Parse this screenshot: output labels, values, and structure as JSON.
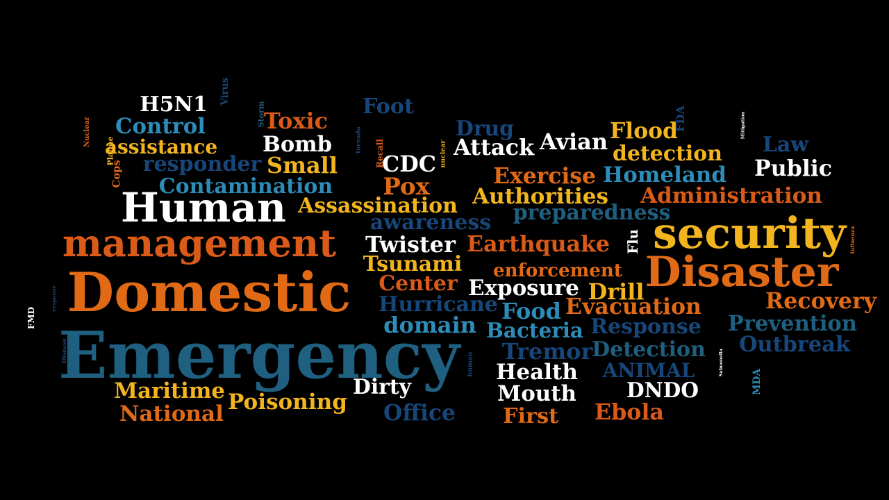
{
  "palette": {
    "white": "#ffffff",
    "orange": "#e06a16",
    "redorange": "#d95a19",
    "yellow": "#f2b51f",
    "skyblue": "#2d8cb8",
    "teal": "#1f5f80",
    "navy": "#17477a",
    "deepnavy": "#123561"
  },
  "words": [
    {
      "text": "Domestic",
      "color": "orange"
    },
    {
      "text": "Emergency",
      "color": "teal"
    },
    {
      "text": "management",
      "color": "redorange"
    },
    {
      "text": "Human",
      "color": "white"
    },
    {
      "text": "security",
      "color": "yellow"
    },
    {
      "text": "Disaster",
      "color": "orange"
    },
    {
      "text": "H5N1",
      "color": "white"
    },
    {
      "text": "Control",
      "color": "skyblue"
    },
    {
      "text": "assistance",
      "color": "yellow"
    },
    {
      "text": "responder",
      "color": "navy"
    },
    {
      "text": "Contamination",
      "color": "skyblue"
    },
    {
      "text": "Assassination",
      "color": "yellow"
    },
    {
      "text": "Toxic",
      "color": "redorange"
    },
    {
      "text": "Bomb",
      "color": "white"
    },
    {
      "text": "Small",
      "color": "yellow"
    },
    {
      "text": "Foot",
      "color": "navy"
    },
    {
      "text": "CDC",
      "color": "white"
    },
    {
      "text": "Pox",
      "color": "orange"
    },
    {
      "text": "Drug",
      "color": "navy"
    },
    {
      "text": "Attack",
      "color": "white"
    },
    {
      "text": "Avian",
      "color": "white"
    },
    {
      "text": "Flood",
      "color": "yellow"
    },
    {
      "text": "detection",
      "color": "yellow"
    },
    {
      "text": "Exercise",
      "color": "orange"
    },
    {
      "text": "Homeland",
      "color": "skyblue"
    },
    {
      "text": "Authorities",
      "color": "yellow"
    },
    {
      "text": "Administration",
      "color": "redorange"
    },
    {
      "text": "Law",
      "color": "navy"
    },
    {
      "text": "Public",
      "color": "white"
    },
    {
      "text": "preparedness",
      "color": "teal"
    },
    {
      "text": "awareness",
      "color": "navy"
    },
    {
      "text": "Twister",
      "color": "white"
    },
    {
      "text": "Earthquake",
      "color": "redorange"
    },
    {
      "text": "Tsunami",
      "color": "yellow"
    },
    {
      "text": "enforcement",
      "color": "orange"
    },
    {
      "text": "Center",
      "color": "redorange"
    },
    {
      "text": "Exposure",
      "color": "white"
    },
    {
      "text": "Drill",
      "color": "yellow"
    },
    {
      "text": "Hurricane",
      "color": "navy"
    },
    {
      "text": "Food",
      "color": "skyblue"
    },
    {
      "text": "Evacuation",
      "color": "orange"
    },
    {
      "text": "Recovery",
      "color": "orange"
    },
    {
      "text": "domain",
      "color": "skyblue"
    },
    {
      "text": "Bacteria",
      "color": "skyblue"
    },
    {
      "text": "Response",
      "color": "navy"
    },
    {
      "text": "Prevention",
      "color": "teal"
    },
    {
      "text": "Outbreak",
      "color": "navy"
    },
    {
      "text": "Tremor",
      "color": "navy"
    },
    {
      "text": "Detection",
      "color": "teal"
    },
    {
      "text": "ANIMAL",
      "color": "navy"
    },
    {
      "text": "Health",
      "color": "white"
    },
    {
      "text": "Mouth",
      "color": "white"
    },
    {
      "text": "First",
      "color": "orange"
    },
    {
      "text": "DNDO",
      "color": "white"
    },
    {
      "text": "Ebola",
      "color": "redorange"
    },
    {
      "text": "Maritime",
      "color": "yellow"
    },
    {
      "text": "National",
      "color": "orange"
    },
    {
      "text": "Poisoning",
      "color": "yellow"
    },
    {
      "text": "Dirty",
      "color": "white"
    },
    {
      "text": "Office",
      "color": "navy"
    },
    {
      "text": "Nuclear",
      "color": "orange"
    },
    {
      "text": "Plague",
      "color": "yellow"
    },
    {
      "text": "Cops",
      "color": "orange"
    },
    {
      "text": "Virus",
      "color": "navy"
    },
    {
      "text": "Storm",
      "color": "teal"
    },
    {
      "text": "Tornado",
      "color": "navy"
    },
    {
      "text": "Recall",
      "color": "redorange"
    },
    {
      "text": "nuclear",
      "color": "yellow"
    },
    {
      "text": "FDA",
      "color": "navy"
    },
    {
      "text": "Mitigation",
      "color": "white"
    },
    {
      "text": "Flu",
      "color": "white"
    },
    {
      "text": "Influenza",
      "color": "orange"
    },
    {
      "text": "Salmonella",
      "color": "white"
    },
    {
      "text": "MDA",
      "color": "skyblue"
    },
    {
      "text": "human",
      "color": "navy"
    },
    {
      "text": "response",
      "color": "navy"
    },
    {
      "text": "Disease",
      "color": "navy"
    },
    {
      "text": "FMD",
      "color": "white"
    }
  ]
}
